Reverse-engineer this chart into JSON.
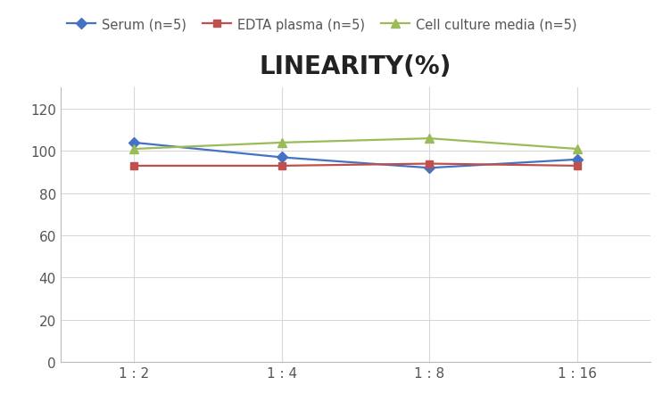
{
  "title": "LINEARITY(%)",
  "x_labels": [
    "1 : 2",
    "1 : 4",
    "1 : 8",
    "1 : 16"
  ],
  "x_positions": [
    0,
    1,
    2,
    3
  ],
  "series": [
    {
      "label": "Serum (n=5)",
      "values": [
        104,
        97,
        92,
        96
      ],
      "color": "#4472C4",
      "marker": "D",
      "marker_size": 6,
      "linewidth": 1.6
    },
    {
      "label": "EDTA plasma (n=5)",
      "values": [
        93,
        93,
        94,
        93
      ],
      "color": "#C0504D",
      "marker": "s",
      "marker_size": 6,
      "linewidth": 1.6
    },
    {
      "label": "Cell culture media (n=5)",
      "values": [
        101,
        104,
        106,
        101
      ],
      "color": "#9BBB59",
      "marker": "^",
      "marker_size": 7,
      "linewidth": 1.6
    }
  ],
  "ylim": [
    0,
    130
  ],
  "yticks": [
    0,
    20,
    40,
    60,
    80,
    100,
    120
  ],
  "grid_color": "#D8D8D8",
  "background_color": "#FFFFFF",
  "title_fontsize": 20,
  "title_fontweight": "bold",
  "legend_fontsize": 10.5,
  "tick_fontsize": 11
}
